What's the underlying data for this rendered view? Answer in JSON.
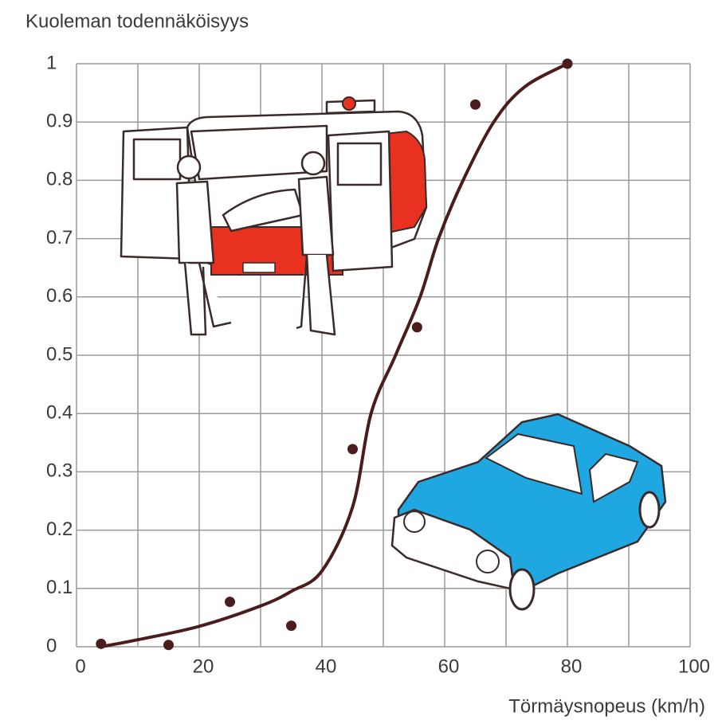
{
  "chart_data": {
    "type": "scatter",
    "ylabel": "Kuoleman todennäköisyys",
    "xlabel": "Törmäysnopeus (km/h)",
    "xlim": [
      0,
      100
    ],
    "xticks": [
      0,
      20,
      40,
      60,
      80,
      100
    ],
    "xminor_ticks": [
      10,
      30,
      50,
      70,
      90
    ],
    "ylim": [
      0,
      1
    ],
    "yticks": [
      0,
      0.1,
      0.2,
      0.3,
      0.4,
      0.5,
      0.6,
      0.7,
      0.8,
      0.9,
      1
    ],
    "grid": true,
    "series": [
      {
        "type": "scatter",
        "color": "#4a1c1c",
        "x": [
          4,
          15,
          25,
          35,
          45,
          55.5,
          65,
          80
        ],
        "values": [
          0.005,
          0.003,
          0.077,
          0.036,
          0.339,
          0.548,
          0.93,
          1.0
        ]
      },
      {
        "type": "line",
        "color": "#4a1c1c",
        "x": [
          4,
          10,
          20,
          30,
          35,
          40,
          45,
          48,
          52,
          56,
          59,
          63,
          68,
          73,
          80
        ],
        "values": [
          0,
          0.012,
          0.035,
          0.07,
          0.095,
          0.13,
          0.24,
          0.4,
          0.5,
          0.6,
          0.7,
          0.8,
          0.9,
          0.96,
          1.0
        ]
      }
    ]
  }
}
